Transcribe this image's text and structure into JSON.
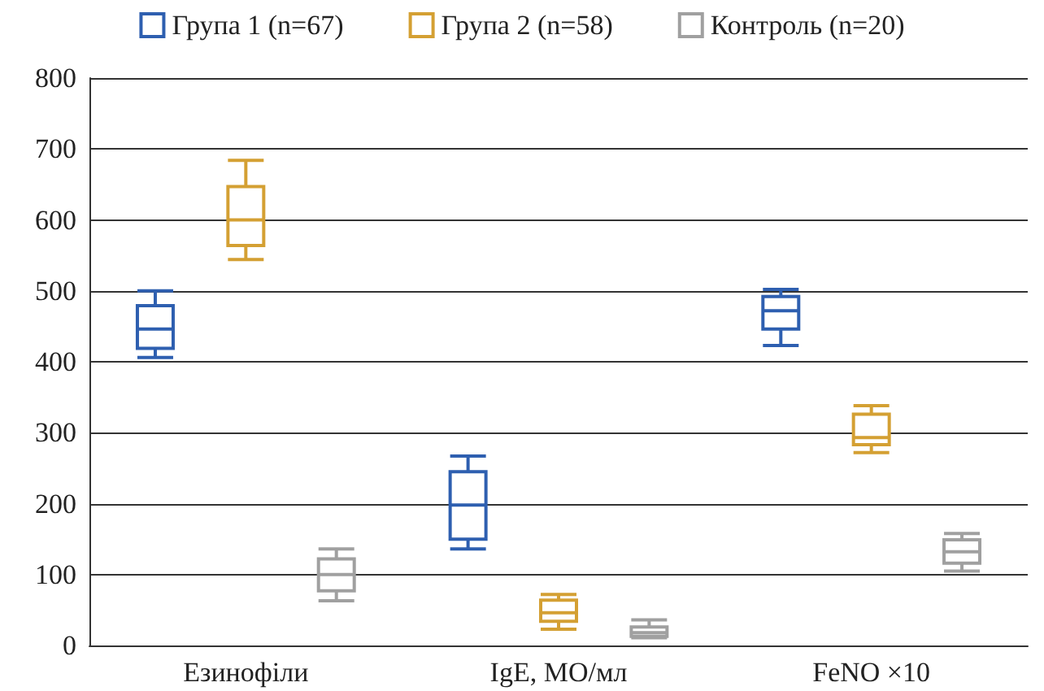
{
  "chart_data": {
    "type": "box",
    "categories": [
      "Езинофіли",
      "IgE, МО/мл",
      "FeNO ×10"
    ],
    "ylim": [
      0,
      800
    ],
    "yticks": [
      0,
      100,
      200,
      300,
      400,
      500,
      600,
      700,
      800
    ],
    "grid": "y",
    "legend": "top",
    "series": [
      {
        "name": "Група 1 (n=67)",
        "color": "#2e5fb0",
        "boxes": [
          {
            "low": 406,
            "q1": 419,
            "median": 446,
            "q3": 479,
            "high": 500
          },
          {
            "low": 136,
            "q1": 150,
            "median": 198,
            "q3": 245,
            "high": 267
          },
          {
            "low": 423,
            "q1": 446,
            "median": 472,
            "q3": 492,
            "high": 502
          }
        ]
      },
      {
        "name": "Група 2 (n=58)",
        "color": "#d4a033",
        "boxes": [
          {
            "low": 544,
            "q1": 564,
            "median": 600,
            "q3": 647,
            "high": 684
          },
          {
            "low": 23,
            "q1": 34,
            "median": 46,
            "q3": 64,
            "high": 72
          },
          {
            "low": 272,
            "q1": 283,
            "median": 293,
            "q3": 326,
            "high": 338
          }
        ]
      },
      {
        "name": "Контроль (n=20)",
        "color": "#a0a0a0",
        "boxes": [
          {
            "low": 63,
            "q1": 77,
            "median": 100,
            "q3": 122,
            "high": 136
          },
          {
            "low": 11,
            "q1": 13,
            "median": 18,
            "q3": 26,
            "high": 36
          },
          {
            "low": 105,
            "q1": 116,
            "median": 132,
            "q3": 149,
            "high": 158
          }
        ]
      }
    ]
  }
}
